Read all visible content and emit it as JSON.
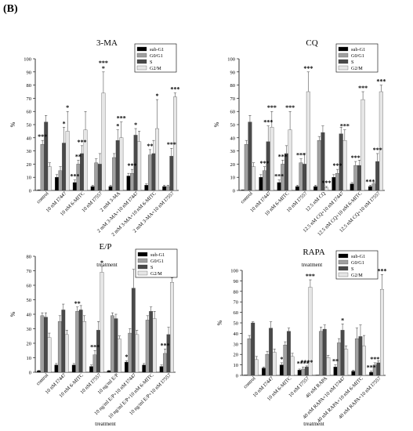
{
  "figure_label": "(B)",
  "legend": [
    "sub-G1",
    "G0/G1",
    "S",
    "G2/M"
  ],
  "series_colors": [
    "#000000",
    "#a0a0a0",
    "#4a4a4a",
    "#e6e6e6"
  ],
  "chart_data": [
    {
      "type": "bar",
      "title": "3-MA",
      "xlabel": "treatment",
      "ylabel": "%",
      "ylim": [
        0,
        100
      ],
      "yticks": [
        0,
        10,
        20,
        30,
        40,
        50,
        60,
        70,
        80,
        90,
        100
      ],
      "categories": [
        "control",
        "10 nM I7447",
        "10 nM 6-MITC",
        "10 nM I7557",
        "2 mM 3-MA",
        "2 mM 3-MA+10 nM I7447",
        "2 mM 3-MA+10 nM 6-MITC",
        "2 mM 3-MA+10 nM I7557"
      ],
      "series": [
        {
          "name": "sub-G1",
          "values": [
            0,
            10,
            6,
            3,
            3,
            11,
            4,
            3
          ],
          "errors": [
            0.5,
            2,
            2,
            1,
            1,
            2,
            1,
            1
          ]
        },
        {
          "name": "G0/G1",
          "values": [
            35,
            15,
            20,
            21,
            25,
            13,
            27,
            3
          ],
          "errors": [
            3,
            3,
            3,
            3,
            3,
            3,
            4,
            1
          ]
        },
        {
          "name": "S",
          "values": [
            52,
            36,
            28,
            20,
            38,
            42,
            28,
            26
          ],
          "errors": [
            5,
            12,
            6,
            8,
            8,
            5,
            10,
            6
          ]
        },
        {
          "name": "G2/M",
          "values": [
            18,
            45,
            46,
            74,
            40,
            37,
            47,
            71
          ],
          "errors": [
            3,
            15,
            14,
            16,
            12,
            8,
            22,
            3
          ]
        }
      ],
      "annotations": [
        {
          "category": 0,
          "series": 1,
          "text": "***"
        },
        {
          "category": 1,
          "series": 2,
          "text": "*"
        },
        {
          "category": 1,
          "series": 3,
          "text": "*"
        },
        {
          "category": 2,
          "series": 0,
          "text": "***"
        },
        {
          "category": 2,
          "series": 1,
          "text": "**"
        },
        {
          "category": 2,
          "series": 2,
          "text": "***"
        },
        {
          "category": 3,
          "series": 3,
          "text": "*"
        },
        {
          "category": 3,
          "series": 3,
          "text": "***"
        },
        {
          "category": 4,
          "series": 2,
          "text": "*"
        },
        {
          "category": 4,
          "series": 3,
          "text": "***"
        },
        {
          "category": 5,
          "series": 1,
          "text": "***"
        },
        {
          "category": 5,
          "series": 2,
          "text": "*"
        },
        {
          "category": 6,
          "series": 1,
          "text": "**"
        },
        {
          "category": 6,
          "series": 3,
          "text": "*"
        },
        {
          "category": 7,
          "series": 2,
          "text": "***"
        },
        {
          "category": 7,
          "series": 3,
          "text": "***"
        }
      ]
    },
    {
      "type": "bar",
      "title": "CQ",
      "xlabel": "treatment",
      "ylabel": "%",
      "ylim": [
        0,
        100
      ],
      "yticks": [
        0,
        10,
        20,
        30,
        40,
        50,
        60,
        70,
        80,
        90,
        100
      ],
      "categories": [
        "control",
        "10 nM I7447",
        "10 nM 6-MITC",
        "10 nM I7557",
        "12.5 nM CQ",
        "12.5 nM CQ+10 nM I7447",
        "12.5 nM CQ+10 nM 6-MITC",
        "12.5 nM CQ+10 nM I7557"
      ],
      "series": [
        {
          "name": "sub-G1",
          "values": [
            0,
            10,
            6,
            3,
            3,
            10,
            5,
            3
          ],
          "errors": [
            0.5,
            2,
            2,
            1,
            1,
            2,
            1,
            1
          ]
        },
        {
          "name": "G0/G1",
          "values": [
            35,
            15,
            20,
            21,
            38,
            13,
            19,
            5
          ],
          "errors": [
            3,
            3,
            3,
            3,
            3,
            3,
            3,
            1
          ]
        },
        {
          "name": "S",
          "values": [
            52,
            37,
            28,
            20,
            44,
            43,
            19,
            22
          ],
          "errors": [
            5,
            12,
            6,
            8,
            5,
            5,
            4,
            6
          ]
        },
        {
          "name": "G2/M",
          "values": [
            18,
            48,
            46,
            75,
            2,
            38,
            69,
            75
          ],
          "errors": [
            3,
            12,
            14,
            15,
            1,
            8,
            6,
            5
          ]
        }
      ],
      "annotations": [
        {
          "category": 1,
          "series": 1,
          "text": "***"
        },
        {
          "category": 1,
          "series": 2,
          "text": "***"
        },
        {
          "category": 1,
          "series": 3,
          "text": "***"
        },
        {
          "category": 2,
          "series": 0,
          "text": "***"
        },
        {
          "category": 2,
          "series": 1,
          "text": "***"
        },
        {
          "category": 2,
          "series": 3,
          "text": "***"
        },
        {
          "category": 3,
          "series": 1,
          "text": "***"
        },
        {
          "category": 3,
          "series": 3,
          "text": "***"
        },
        {
          "category": 4,
          "series": 3,
          "text": "***"
        },
        {
          "category": 5,
          "series": 1,
          "text": "***"
        },
        {
          "category": 5,
          "series": 3,
          "text": "***"
        },
        {
          "category": 6,
          "series": 1,
          "text": "***"
        },
        {
          "category": 6,
          "series": 3,
          "text": "***"
        },
        {
          "category": 7,
          "series": 0,
          "text": "***"
        },
        {
          "category": 7,
          "series": 2,
          "text": "***"
        },
        {
          "category": 7,
          "series": 3,
          "text": "***"
        }
      ]
    },
    {
      "type": "bar",
      "title": "E/P",
      "xlabel": "treatment",
      "ylabel": "%",
      "ylim": [
        0,
        80
      ],
      "yticks": [
        0,
        10,
        20,
        30,
        40,
        50,
        60,
        70,
        80
      ],
      "categories": [
        "control",
        "10 nM I7447",
        "10 nM 6-MITC",
        "10 nM I7557",
        "10 ng/ml E/P",
        "10 ng/ml E/P+10 nM I7447",
        "10 ng/ml E/P+10 nM 6-MITC",
        "10 ng/ml E/P+10 nM I7557"
      ],
      "series": [
        {
          "name": "sub-G1",
          "values": [
            1,
            5,
            5,
            4,
            1,
            7,
            5,
            4
          ],
          "errors": [
            0.3,
            1,
            1,
            1,
            0.3,
            1,
            1,
            1
          ]
        },
        {
          "name": "G0/G1",
          "values": [
            39,
            35,
            42,
            12,
            39,
            27,
            36,
            13
          ],
          "errors": [
            2,
            4,
            3,
            3,
            2,
            3,
            3,
            3
          ]
        },
        {
          "name": "S",
          "values": [
            38,
            43,
            43,
            29,
            37,
            58,
            42,
            26
          ],
          "errors": [
            3,
            4,
            3,
            6,
            3,
            13,
            3,
            5
          ]
        },
        {
          "name": "G2/M",
          "values": [
            24,
            26,
            35,
            69,
            23,
            26,
            37,
            62
          ],
          "errors": [
            3,
            3,
            4,
            4,
            2,
            3,
            5,
            3
          ]
        }
      ],
      "annotations": [
        {
          "category": 2,
          "series": 1,
          "text": "**"
        },
        {
          "category": 3,
          "series": 1,
          "text": "***"
        },
        {
          "category": 3,
          "series": 3,
          "text": "*"
        },
        {
          "category": 5,
          "series": 0,
          "text": "*"
        },
        {
          "category": 7,
          "series": 1,
          "text": "***"
        }
      ]
    },
    {
      "type": "bar",
      "title": "RAPA",
      "xlabel": "treatment",
      "ylabel": "%",
      "ylim": [
        0,
        100
      ],
      "yticks": [
        0,
        10,
        20,
        30,
        40,
        50,
        60,
        70,
        80,
        90,
        100
      ],
      "categories": [
        "control",
        "10 nM I7447",
        "10 nM 6-MITC",
        "10 nM I7557",
        "40 nM RAPA",
        "40 nM RAPA+10 nM I7447",
        "40 nM RAPA+10 nM 6-MITC",
        "40 nM RAPA+10 nM I7557"
      ],
      "series": [
        {
          "name": "sub-G1",
          "values": [
            0,
            7,
            10,
            5,
            0,
            8,
            4,
            3
          ],
          "errors": [
            0.3,
            1,
            2,
            1,
            0.3,
            2,
            1,
            1
          ]
        },
        {
          "name": "G0/G1",
          "values": [
            35,
            20,
            29,
            6,
            42,
            31,
            35,
            10
          ],
          "errors": [
            3,
            3,
            3,
            2,
            4,
            4,
            10,
            2
          ]
        },
        {
          "name": "S",
          "values": [
            50,
            45,
            42,
            8,
            44,
            43,
            37,
            12
          ],
          "errors": [
            1,
            6,
            3,
            1,
            4,
            6,
            11,
            2
          ]
        },
        {
          "name": "G2/M",
          "values": [
            15,
            22,
            18,
            84,
            17,
            25,
            28,
            82
          ],
          "errors": [
            3,
            3,
            3,
            7,
            2,
            3,
            10,
            14
          ]
        }
      ],
      "annotations": [
        {
          "category": 2,
          "series": 0,
          "text": "*"
        },
        {
          "category": 3,
          "series": 1,
          "text": "****"
        },
        {
          "category": 3,
          "series": 2,
          "text": "****"
        },
        {
          "category": 3,
          "series": 3,
          "text": "***"
        },
        {
          "category": 5,
          "series": 0,
          "text": "**"
        },
        {
          "category": 5,
          "series": 2,
          "text": "*"
        },
        {
          "category": 7,
          "series": 0,
          "text": "***"
        },
        {
          "category": 7,
          "series": 1,
          "text": "***"
        },
        {
          "category": 7,
          "series": 3,
          "text": "***"
        }
      ]
    }
  ]
}
